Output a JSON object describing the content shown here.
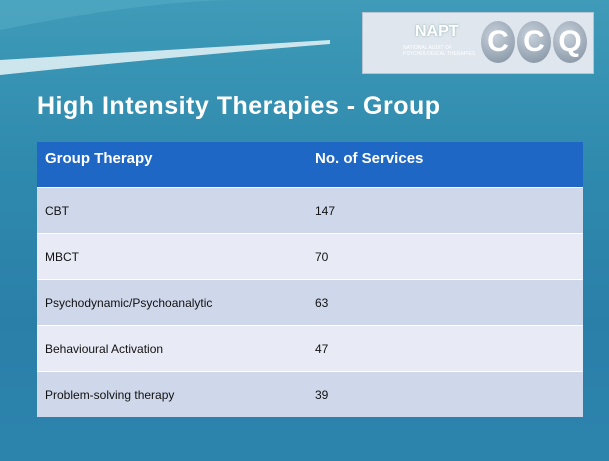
{
  "logo": {
    "name": "NAPT",
    "subtitle": "NATIONAL AUDIT OF PSYCHOLOGICAL THERAPIES",
    "letters": [
      "C",
      "C",
      "Q"
    ]
  },
  "title": "High Intensity Therapies - Group",
  "table": {
    "header": [
      "Group Therapy",
      "No. of Services"
    ],
    "rows": [
      [
        "CBT",
        147
      ],
      [
        "MBCT",
        70
      ],
      [
        "Psychodynamic/Psychoanalytic",
        63
      ],
      [
        "Behavioural Activation",
        47
      ],
      [
        "Problem-solving therapy",
        39
      ]
    ]
  }
}
